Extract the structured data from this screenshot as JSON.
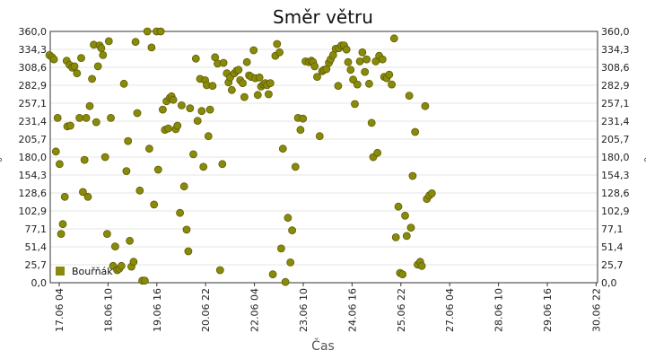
{
  "chart_data": {
    "type": "scatter",
    "title": "Směr větru",
    "xlabel": "Čas",
    "ylabel": "°",
    "ylabel_right": "°",
    "ylim": [
      0,
      360
    ],
    "y_ticks": [
      "0,0",
      "25,7",
      "51,4",
      "77,1",
      "102,9",
      "128,6",
      "154,3",
      "180,0",
      "205,7",
      "231,4",
      "257,1",
      "282,9",
      "308,6",
      "334,3",
      "360,0"
    ],
    "x_ticks": [
      "17.06 04",
      "18.06 10",
      "19.06 16",
      "20.06 22",
      "22.06 04",
      "23.06 10",
      "24.06 16",
      "25.06 22",
      "27.06 04",
      "28.06 10",
      "29.06 16",
      "30.06 22"
    ],
    "x_range_hours": [
      0,
      327
    ],
    "grid": "horizontal",
    "legend_position": "bottom-left",
    "series": [
      {
        "name": "Bouřňák",
        "color": "#8a8a0a",
        "points": [
          [
            -0.5,
            326
          ],
          [
            1.1,
            323
          ],
          [
            2.2,
            320
          ],
          [
            3.4,
            188
          ],
          [
            4.4,
            236
          ],
          [
            5.6,
            170
          ],
          [
            6.5,
            70
          ],
          [
            7.5,
            84
          ],
          [
            8.7,
            123
          ],
          [
            10.2,
            224
          ],
          [
            12.0,
            225
          ],
          [
            9.8,
            318
          ],
          [
            11.5,
            312
          ],
          [
            13.2,
            308
          ],
          [
            14.5,
            310
          ],
          [
            16.0,
            300
          ],
          [
            17.5,
            236
          ],
          [
            18.5,
            322
          ],
          [
            19.5,
            130
          ],
          [
            20.5,
            176
          ],
          [
            21.5,
            236
          ],
          [
            22.5,
            123
          ],
          [
            23.6,
            253
          ],
          [
            25.0,
            292
          ],
          [
            26.0,
            341
          ],
          [
            27.5,
            230
          ],
          [
            28.5,
            310
          ],
          [
            29.5,
            340
          ],
          [
            30.5,
            336
          ],
          [
            31.5,
            326
          ],
          [
            32.8,
            180
          ],
          [
            34.0,
            70
          ],
          [
            35.0,
            346
          ],
          [
            36.2,
            236
          ],
          [
            37.5,
            24
          ],
          [
            38.8,
            52
          ],
          [
            40.0,
            18
          ],
          [
            41.2,
            20
          ],
          [
            42.5,
            24
          ],
          [
            44.0,
            285
          ],
          [
            45.5,
            160
          ],
          [
            46.5,
            203
          ],
          [
            47.5,
            60
          ],
          [
            48.5,
            23
          ],
          [
            49.8,
            30
          ],
          [
            51.0,
            345
          ],
          [
            52.0,
            243
          ],
          [
            53.5,
            132
          ],
          [
            55.0,
            3
          ],
          [
            56.5,
            3
          ],
          [
            58.0,
            360
          ],
          [
            59.2,
            192
          ],
          [
            60.5,
            337
          ],
          [
            62.0,
            112
          ],
          [
            63.5,
            360
          ],
          [
            64.5,
            162
          ],
          [
            66.0,
            360
          ],
          [
            67.2,
            248
          ],
          [
            68.5,
            219
          ],
          [
            69.5,
            260
          ],
          [
            70.5,
            221
          ],
          [
            71.5,
            265
          ],
          [
            72.5,
            267
          ],
          [
            73.5,
            262
          ],
          [
            75.0,
            220
          ],
          [
            76.0,
            225
          ],
          [
            77.5,
            100
          ],
          [
            78.5,
            254
          ],
          [
            80.0,
            138
          ],
          [
            81.5,
            76
          ],
          [
            82.5,
            45
          ],
          [
            83.5,
            250
          ],
          [
            85.5,
            184
          ],
          [
            87.0,
            321
          ],
          [
            88.0,
            232
          ],
          [
            89.5,
            292
          ],
          [
            90.5,
            246
          ],
          [
            91.5,
            166
          ],
          [
            92.5,
            290
          ],
          [
            93.5,
            283
          ],
          [
            94.5,
            210
          ],
          [
            95.5,
            248
          ],
          [
            97.0,
            282
          ],
          [
            98.5,
            323
          ],
          [
            100.0,
            314
          ],
          [
            101.5,
            18
          ],
          [
            102.8,
            170
          ],
          [
            103.5,
            315
          ],
          [
            105.5,
            300
          ],
          [
            106.5,
            287
          ],
          [
            107.5,
            294
          ],
          [
            108.5,
            276
          ],
          [
            110.0,
            300
          ],
          [
            111.5,
            304
          ],
          [
            112.5,
            305
          ],
          [
            113.5,
            290
          ],
          [
            115.0,
            286
          ],
          [
            116.0,
            266
          ],
          [
            117.5,
            316
          ],
          [
            118.8,
            297
          ],
          [
            120.0,
            295
          ],
          [
            121.5,
            333
          ],
          [
            122.5,
            293
          ],
          [
            124.0,
            269
          ],
          [
            125.0,
            294
          ],
          [
            126.0,
            281
          ],
          [
            127.5,
            284
          ],
          [
            128.5,
            286
          ],
          [
            129.5,
            283
          ],
          [
            130.5,
            270
          ],
          [
            131.5,
            286
          ],
          [
            133.0,
            12
          ],
          [
            134.5,
            325
          ],
          [
            135.5,
            342
          ],
          [
            137.0,
            330
          ],
          [
            138.0,
            49
          ],
          [
            139.0,
            192
          ],
          [
            140.5,
            1
          ],
          [
            142.0,
            93
          ],
          [
            143.5,
            29
          ],
          [
            144.5,
            75
          ],
          [
            146.5,
            166
          ],
          [
            148.0,
            236
          ],
          [
            149.5,
            219
          ],
          [
            151.0,
            235
          ],
          [
            152.5,
            317
          ],
          [
            154.5,
            316
          ],
          [
            156.0,
            318
          ],
          [
            157.0,
            316
          ],
          [
            158.0,
            310
          ],
          [
            159.5,
            295
          ],
          [
            161.0,
            210
          ],
          [
            162.5,
            303
          ],
          [
            163.5,
            305
          ],
          [
            165.0,
            306
          ],
          [
            166.5,
            315
          ],
          [
            167.5,
            320
          ],
          [
            169.0,
            326
          ],
          [
            170.5,
            335
          ],
          [
            172.0,
            282
          ],
          [
            172.5,
            336
          ],
          [
            174.0,
            340
          ],
          [
            175.5,
            340
          ],
          [
            177.0,
            334
          ],
          [
            178.0,
            316
          ],
          [
            179.5,
            305
          ],
          [
            181.0,
            291
          ],
          [
            182.0,
            256
          ],
          [
            183.5,
            284
          ],
          [
            185.0,
            317
          ],
          [
            186.5,
            330
          ],
          [
            188.0,
            302
          ],
          [
            189.0,
            320
          ],
          [
            190.5,
            285
          ],
          [
            192.0,
            229
          ],
          [
            193.0,
            180
          ],
          [
            194.5,
            317
          ],
          [
            195.5,
            186
          ],
          [
            196.5,
            325
          ],
          [
            198.5,
            320
          ],
          [
            199.5,
            295
          ],
          [
            201.0,
            293
          ],
          [
            202.5,
            298
          ],
          [
            204.0,
            284
          ],
          [
            205.5,
            350
          ],
          [
            206.5,
            65
          ],
          [
            208.0,
            109
          ],
          [
            209.0,
            14
          ],
          [
            210.5,
            12
          ],
          [
            212.0,
            96
          ],
          [
            213.0,
            67
          ],
          [
            214.5,
            268
          ],
          [
            215.5,
            79
          ],
          [
            216.5,
            153
          ],
          [
            218.0,
            216
          ],
          [
            219.5,
            26
          ],
          [
            221.0,
            30
          ],
          [
            222.0,
            24
          ],
          [
            224.0,
            253
          ],
          [
            225.0,
            120
          ],
          [
            226.5,
            125
          ],
          [
            228.0,
            128
          ]
        ]
      }
    ]
  }
}
